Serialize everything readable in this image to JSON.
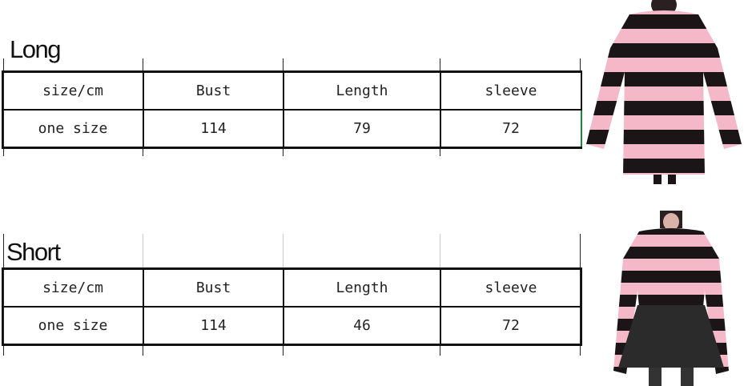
{
  "tables": [
    {
      "title": "Long",
      "headers": [
        "size/cm",
        "Bust",
        "Length",
        "sleeve"
      ],
      "rows": [
        [
          "one size",
          "114",
          "79",
          "72"
        ]
      ]
    },
    {
      "title": "Short",
      "headers": [
        "size/cm",
        "Bust",
        "Length",
        "sleeve"
      ],
      "rows": [
        [
          "one size",
          "114",
          "46",
          "72"
        ]
      ]
    }
  ],
  "colors": {
    "stripe_pink": "#f4b8c8",
    "stripe_black": "#1b1517"
  }
}
